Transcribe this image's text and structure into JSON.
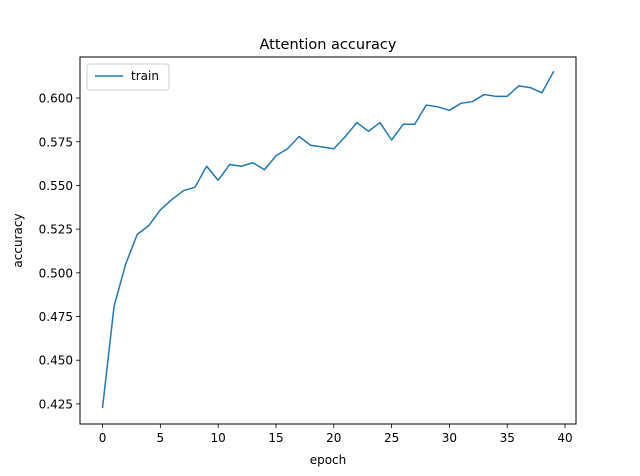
{
  "chart_data": {
    "type": "line",
    "title": "Attention accuracy",
    "xlabel": "epoch",
    "ylabel": "accuracy",
    "xlim": [
      -1.95,
      40.95
    ],
    "ylim": [
      0.4135,
      0.6235
    ],
    "x_ticks": [
      0,
      5,
      10,
      15,
      20,
      25,
      30,
      35,
      40
    ],
    "x_tick_labels": [
      "0",
      "5",
      "10",
      "15",
      "20",
      "25",
      "30",
      "35",
      "40"
    ],
    "y_ticks": [
      0.425,
      0.45,
      0.475,
      0.5,
      0.525,
      0.55,
      0.575,
      0.6
    ],
    "y_tick_labels": [
      "0.425",
      "0.450",
      "0.475",
      "0.500",
      "0.525",
      "0.550",
      "0.575",
      "0.600"
    ],
    "grid": false,
    "legend_position": "top-left",
    "series": [
      {
        "name": "train",
        "color": "#1f77b4",
        "x": [
          0,
          1,
          2,
          3,
          4,
          5,
          6,
          7,
          8,
          9,
          10,
          11,
          12,
          13,
          14,
          15,
          16,
          17,
          18,
          19,
          20,
          21,
          22,
          23,
          24,
          25,
          26,
          27,
          28,
          29,
          30,
          31,
          32,
          33,
          34,
          35,
          36,
          37,
          38,
          39
        ],
        "y": [
          0.423,
          0.481,
          0.505,
          0.522,
          0.527,
          0.536,
          0.542,
          0.547,
          0.549,
          0.561,
          0.553,
          0.562,
          0.561,
          0.563,
          0.559,
          0.567,
          0.571,
          0.578,
          0.573,
          0.572,
          0.571,
          0.578,
          0.586,
          0.581,
          0.586,
          0.576,
          0.585,
          0.585,
          0.596,
          0.595,
          0.593,
          0.597,
          0.598,
          0.602,
          0.601,
          0.601,
          0.607,
          0.606,
          0.603,
          0.615
        ]
      }
    ]
  }
}
